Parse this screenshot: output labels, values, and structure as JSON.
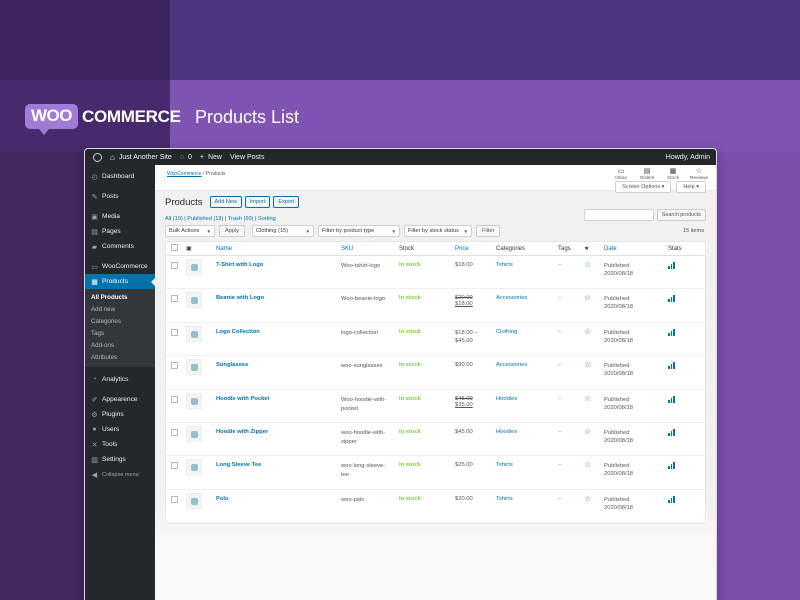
{
  "banner": {
    "logo_woo": "WOO",
    "logo_commerce": "COMMERCE",
    "title": "Products List"
  },
  "adminbar": {
    "site_name": "Just Another Site",
    "comments_count": "0",
    "new_label": "New",
    "view_posts": "View Posts",
    "greeting": "Howdy, Admin"
  },
  "sidebar": {
    "items": [
      {
        "label": "Dashboard",
        "icon": "dashboard-icon",
        "glyph": "◴"
      },
      {
        "label": "Posts",
        "icon": "pin-icon",
        "glyph": "✎"
      },
      {
        "label": "Media",
        "icon": "media-icon",
        "glyph": "▣"
      },
      {
        "label": "Pages",
        "icon": "page-icon",
        "glyph": "▤"
      },
      {
        "label": "Comments",
        "icon": "comment-icon",
        "glyph": "▰"
      },
      {
        "label": "WooCommerce",
        "icon": "woocommerce-icon",
        "glyph": "▭"
      },
      {
        "label": "Products",
        "icon": "products-icon",
        "glyph": "▦"
      },
      {
        "label": "Analytics",
        "icon": "analytics-icon",
        "glyph": "◔"
      },
      {
        "label": "Appearence",
        "icon": "brush-icon",
        "glyph": "✐"
      },
      {
        "label": "Plugins",
        "icon": "plugin-icon",
        "glyph": "⚙"
      },
      {
        "label": "Users",
        "icon": "user-icon",
        "glyph": "●"
      },
      {
        "label": "Tools",
        "icon": "wrench-icon",
        "glyph": "✕"
      },
      {
        "label": "Settings",
        "icon": "settings-icon",
        "glyph": "▥"
      }
    ],
    "submenu": [
      "All Products",
      "Add new",
      "Categories",
      "Tags",
      "Add-ons",
      "Attributes"
    ],
    "collapse": "Collapse menu"
  },
  "header": {
    "breadcrumb_root": "WooCommerce",
    "breadcrumb_current": "/ Products",
    "top_icons": [
      {
        "label": "Inbox",
        "icon": "inbox-icon",
        "glyph": "▭"
      },
      {
        "label": "Orders",
        "icon": "orders-icon",
        "glyph": "▤"
      },
      {
        "label": "Stock",
        "icon": "stock-icon",
        "glyph": "▦"
      },
      {
        "label": "Reviews",
        "icon": "reviews-icon",
        "glyph": "☆"
      }
    ],
    "screen_options": "Screen Options ▾",
    "help": "Help ▾"
  },
  "page": {
    "title": "Products",
    "add_new": "Add New",
    "import": "Import",
    "export": "Export",
    "views": {
      "all": "All (19)",
      "published": "Published (19)",
      "trash": "Trash (60)",
      "sorting": "Sorting"
    },
    "search_button": "Search products",
    "bulk_actions": "Bulk Actions",
    "apply": "Apply",
    "category_filter": "Clothing  (15)",
    "type_filter": "Filter by product type",
    "stock_filter": "Filter by stock status",
    "filter_button": "Filter",
    "items_count": "15 items"
  },
  "table": {
    "headers": {
      "name": "Name",
      "sku": "SKU",
      "stock": "Stock",
      "price": "Price",
      "categories": "Categories",
      "tags": "Tags",
      "featured": "★",
      "date": "Date",
      "stats": "Stats"
    },
    "rows": [
      {
        "name": "T-Shirt with Logo",
        "sku1": "Woo-tshirt-logo",
        "sku2": "",
        "stock": "In stock",
        "price1": "$18.00",
        "price2": "",
        "price_style": "plain",
        "category": "Tshirts",
        "tags": "–",
        "status": "Published",
        "date": "2020/08/18"
      },
      {
        "name": "Beanie with Logo",
        "sku1": "Woo-beanie-logo",
        "sku2": "",
        "stock": "In stock",
        "price1": "$20.00",
        "price2": "$18.00",
        "price_style": "sale",
        "category": "Accessories",
        "tags": "–",
        "status": "Published",
        "date": "2020/08/18"
      },
      {
        "name": "Logo Collection",
        "sku1": "logo-collection",
        "sku2": "",
        "stock": "In stock",
        "price1": "$18.00 –",
        "price2": "$45.00",
        "price_style": "range",
        "category": "Clothing",
        "tags": "–",
        "status": "Published",
        "date": "2020/08/18"
      },
      {
        "name": "Sunglasses",
        "sku1": "woo-sunglasses",
        "sku2": "",
        "stock": "In stock",
        "price1": "$90.00",
        "price2": "",
        "price_style": "plain",
        "category": "Accessories",
        "tags": "–",
        "status": "Published",
        "date": "2020/08/18"
      },
      {
        "name": "Hoodie with Pocket",
        "sku1": "Woo-hoodie-with-",
        "sku2": "pocket",
        "stock": "In stock",
        "price1": "$45.00",
        "price2": "$35.00",
        "price_style": "sale",
        "category": "Hoodies",
        "tags": "–",
        "status": "Published",
        "date": "2020/08/18"
      },
      {
        "name": "Hoodie with Zipper",
        "sku1": "woo-hoodie-with-",
        "sku2": "zipper",
        "stock": "In stock",
        "price1": "$45.00",
        "price2": "",
        "price_style": "plain",
        "category": "Hoodies",
        "tags": "–",
        "status": "Published",
        "date": "2020/08/18"
      },
      {
        "name": "Long Sleeve Tee",
        "sku1": "woo-long-sleeve-",
        "sku2": "tee",
        "stock": "In stock",
        "price1": "$25.00",
        "price2": "",
        "price_style": "plain",
        "category": "Tshirts",
        "tags": "–",
        "status": "Published",
        "date": "2020/08/18"
      },
      {
        "name": "Polo",
        "sku1": "woo-polo",
        "sku2": "",
        "stock": "In stock",
        "price1": "$20.00",
        "price2": "",
        "price_style": "plain",
        "category": "Tshirts",
        "tags": "–",
        "status": "Published",
        "date": "2020/08/18"
      }
    ]
  }
}
